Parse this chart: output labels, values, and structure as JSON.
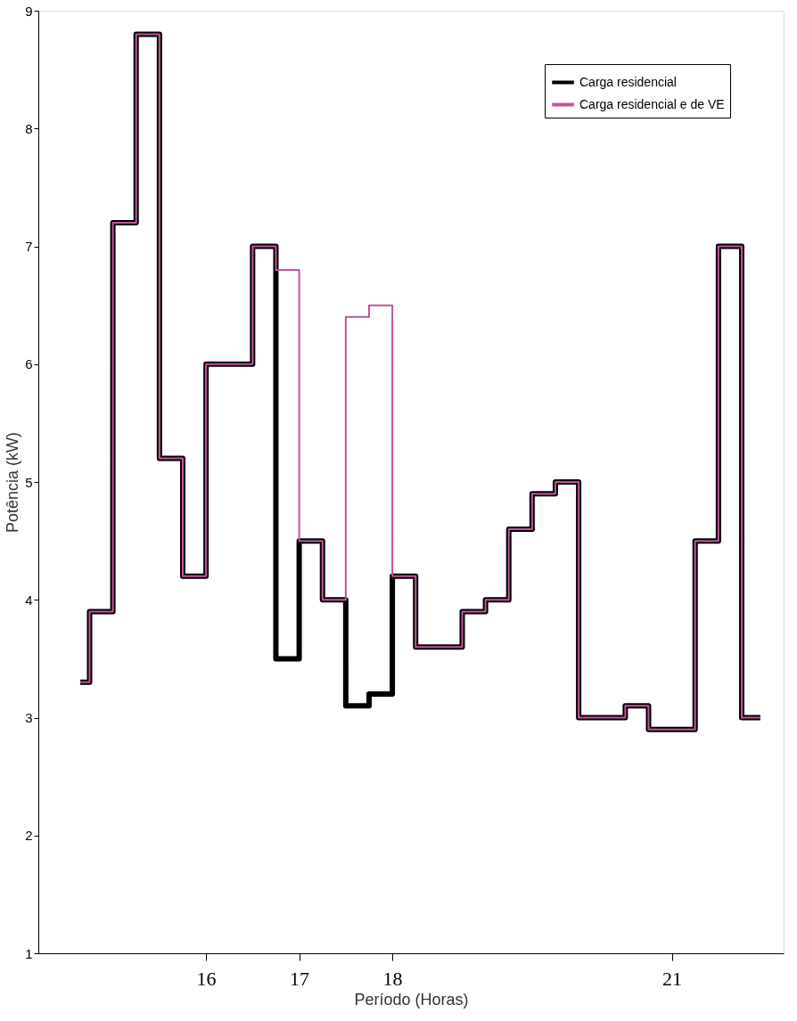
{
  "chart_data": {
    "type": "step",
    "xlabel": "Período (Horas)",
    "ylabel": "Potência (kW)",
    "x": [
      14.65,
      14.75,
      15.0,
      15.25,
      15.5,
      15.75,
      16.0,
      16.5,
      16.75,
      17.0,
      17.25,
      17.5,
      17.75,
      18.0,
      18.25,
      18.75,
      19.0,
      19.25,
      19.5,
      19.75,
      20.0,
      20.5,
      20.75,
      21.25,
      21.5,
      21.75,
      21.95
    ],
    "series": [
      {
        "name": "Carga residencial",
        "color": "#000000",
        "values": [
          3.3,
          3.9,
          7.2,
          8.8,
          5.2,
          4.2,
          6.0,
          7.0,
          3.5,
          4.5,
          4.0,
          3.1,
          3.2,
          4.2,
          3.6,
          3.9,
          4.0,
          4.6,
          4.9,
          5.0,
          3.0,
          3.1,
          2.9,
          4.5,
          7.0,
          3.0,
          3.0
        ]
      },
      {
        "name": "Carga residencial e de VE",
        "color": "#c0559a",
        "values": [
          3.3,
          3.9,
          7.2,
          8.8,
          5.2,
          4.2,
          6.0,
          7.0,
          6.8,
          4.5,
          4.0,
          6.4,
          6.5,
          4.2,
          3.6,
          3.9,
          4.0,
          4.6,
          4.9,
          5.0,
          3.0,
          3.1,
          2.9,
          4.5,
          7.0,
          3.0,
          3.0
        ]
      }
    ],
    "xlim": [
      14.2,
      22.2
    ],
    "xticks": [
      16,
      17,
      18,
      21
    ],
    "ylim": [
      1,
      9
    ],
    "yticks": [
      1,
      2,
      3,
      4,
      5,
      6,
      7,
      8,
      9
    ],
    "legend": "top right",
    "grid": false,
    "marker": "none",
    "line_style": "solid"
  }
}
